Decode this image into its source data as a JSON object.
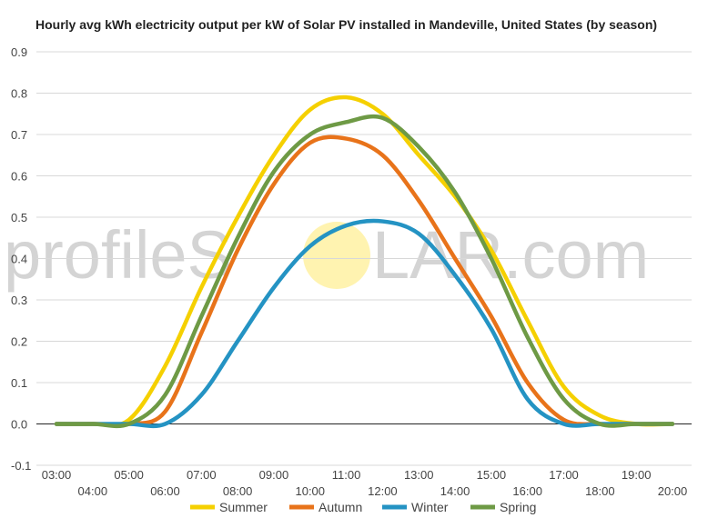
{
  "chart_data": {
    "type": "line",
    "title": "Hourly avg kWh electricity output per kW of Solar PV installed in Mandeville, United States (by season)",
    "xlabel": "",
    "ylabel": "",
    "ylim": [
      -0.1,
      0.9
    ],
    "y_ticks": [
      "-0.1",
      "0.0",
      "0.1",
      "0.2",
      "0.3",
      "0.4",
      "0.5",
      "0.6",
      "0.7",
      "0.8",
      "0.9"
    ],
    "categories": [
      "03:00",
      "04:00",
      "05:00",
      "06:00",
      "07:00",
      "08:00",
      "09:00",
      "10:00",
      "11:00",
      "12:00",
      "13:00",
      "14:00",
      "15:00",
      "16:00",
      "17:00",
      "18:00",
      "19:00",
      "20:00"
    ],
    "grid": "horizontal",
    "legend_position": "bottom",
    "series": [
      {
        "name": "Summer",
        "color": "#f5d000",
        "values": [
          0.0,
          0.0,
          0.01,
          0.14,
          0.33,
          0.5,
          0.65,
          0.76,
          0.79,
          0.75,
          0.65,
          0.55,
          0.42,
          0.25,
          0.09,
          0.02,
          0.0,
          0.0
        ]
      },
      {
        "name": "Autumn",
        "color": "#e8731a",
        "values": [
          0.0,
          0.0,
          0.0,
          0.03,
          0.22,
          0.42,
          0.58,
          0.68,
          0.69,
          0.65,
          0.54,
          0.4,
          0.26,
          0.1,
          0.01,
          0.0,
          0.0,
          0.0
        ]
      },
      {
        "name": "Winter",
        "color": "#2493c3",
        "values": [
          0.0,
          0.0,
          0.0,
          0.0,
          0.07,
          0.2,
          0.33,
          0.43,
          0.48,
          0.49,
          0.46,
          0.36,
          0.23,
          0.06,
          0.0,
          0.0,
          0.0,
          0.0
        ]
      },
      {
        "name": "Spring",
        "color": "#6e9a45",
        "values": [
          0.0,
          0.0,
          0.0,
          0.07,
          0.26,
          0.45,
          0.61,
          0.7,
          0.73,
          0.74,
          0.67,
          0.56,
          0.4,
          0.21,
          0.06,
          0.0,
          0.0,
          0.0
        ]
      }
    ]
  },
  "watermark": {
    "left_text": "profileS",
    "right_text": "LAR.com",
    "sun_color": "#fff3b0"
  }
}
